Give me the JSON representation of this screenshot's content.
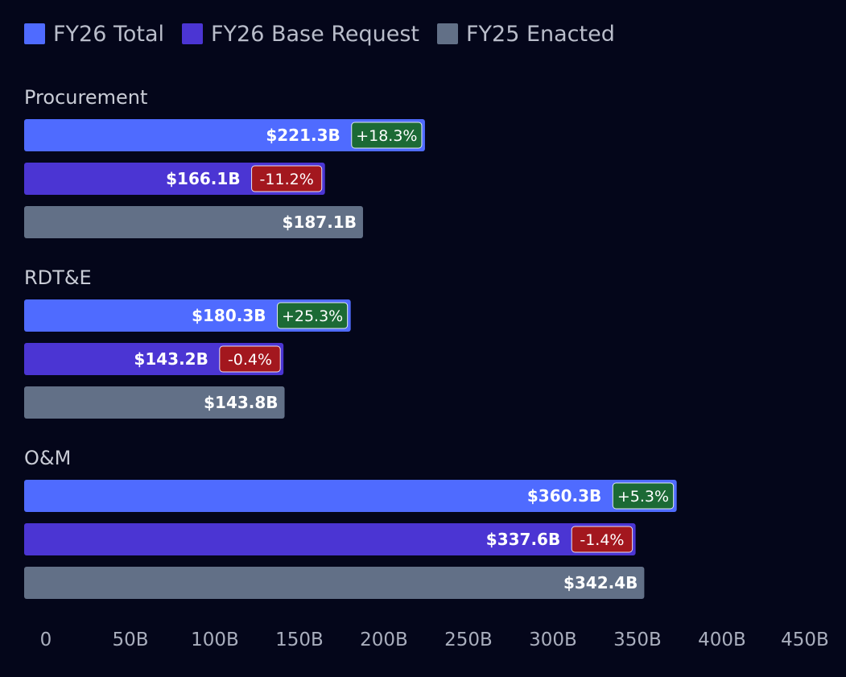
{
  "chart_data": {
    "type": "bar",
    "orientation": "horizontal",
    "title": "",
    "xlabel": "",
    "ylabel": "",
    "categories": [
      "Procurement",
      "RDT&E",
      "O&M"
    ],
    "series": [
      {
        "name": "FY26 Total",
        "color": "#4f6bff",
        "values": [
          221.3,
          180.3,
          360.3
        ],
        "labels": [
          "$221.3B",
          "$180.3B",
          "$360.3B"
        ],
        "changes": [
          "+18.3%",
          "+25.3%",
          "+5.3%"
        ]
      },
      {
        "name": "FY26 Base Request",
        "color": "#4b35d3",
        "values": [
          166.1,
          143.2,
          337.6
        ],
        "labels": [
          "$166.1B",
          "$143.2B",
          "$337.6B"
        ],
        "changes": [
          "-11.2%",
          "-0.4%",
          "-1.4%"
        ]
      },
      {
        "name": "FY25 Enacted",
        "color": "#627087",
        "values": [
          187.1,
          143.8,
          342.4
        ],
        "labels": [
          "$187.1B",
          "$143.8B",
          "$342.4B"
        ],
        "changes": [
          null,
          null,
          null
        ]
      }
    ],
    "xlim": [
      0,
      450
    ],
    "xticks": [
      0,
      50,
      100,
      150,
      200,
      250,
      300,
      350,
      400,
      450
    ],
    "xtick_labels": [
      "0",
      "50B",
      "100B",
      "150B",
      "200B",
      "250B",
      "300B",
      "350B",
      "400B",
      "450B"
    ],
    "change_colors": {
      "positive": "#1c6a35",
      "negative": "#a3171e"
    },
    "grid": false,
    "legend_position": "top-left"
  }
}
